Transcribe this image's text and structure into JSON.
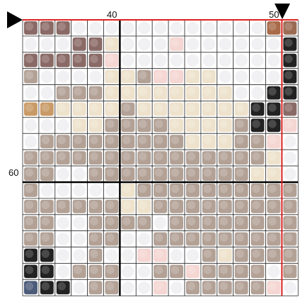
{
  "grid": {
    "column_labels": [
      "40",
      "50"
    ],
    "row_labels": [
      "60"
    ],
    "palette": {
      "e": "#ffffff",
      "m": "#8a6a66",
      "b": "#b3a196",
      "c": "#eee2cc",
      "p": "#f5d6d2",
      "k": "#222222",
      "t": "#c99a66",
      "R": "#a86a48",
      "r": "#9a6a52",
      "n": "#4b5b78"
    },
    "rows": [
      "mmmeeeeeeeeeeeeRr",
      "eeemmceeepeeeeeek",
      "mmmmmpeeeeeeeeeek",
      "beeeeccbppcceeeek",
      "eebbbcccccccceekk",
      "ttccccbccccccckkm",
      "eeeccbbbbccccbkkp",
      "ebbbbbbbbbcccbbpe",
      "bbbbbbbbbbbbbbbce",
      "bbeebbbbbbbbbbcce",
      "beeeeecbbbbbbbbbb",
      "bbbbbbccbbbbbbbbb",
      "bbeebbbbebbbbbbbb",
      "bbeebbeebbbbbbbbb",
      "kkeebeeppeebcbbbb",
      "kkebbbeebbpbbbbeb",
      "nkkebbeepebbbbbpe"
    ]
  }
}
